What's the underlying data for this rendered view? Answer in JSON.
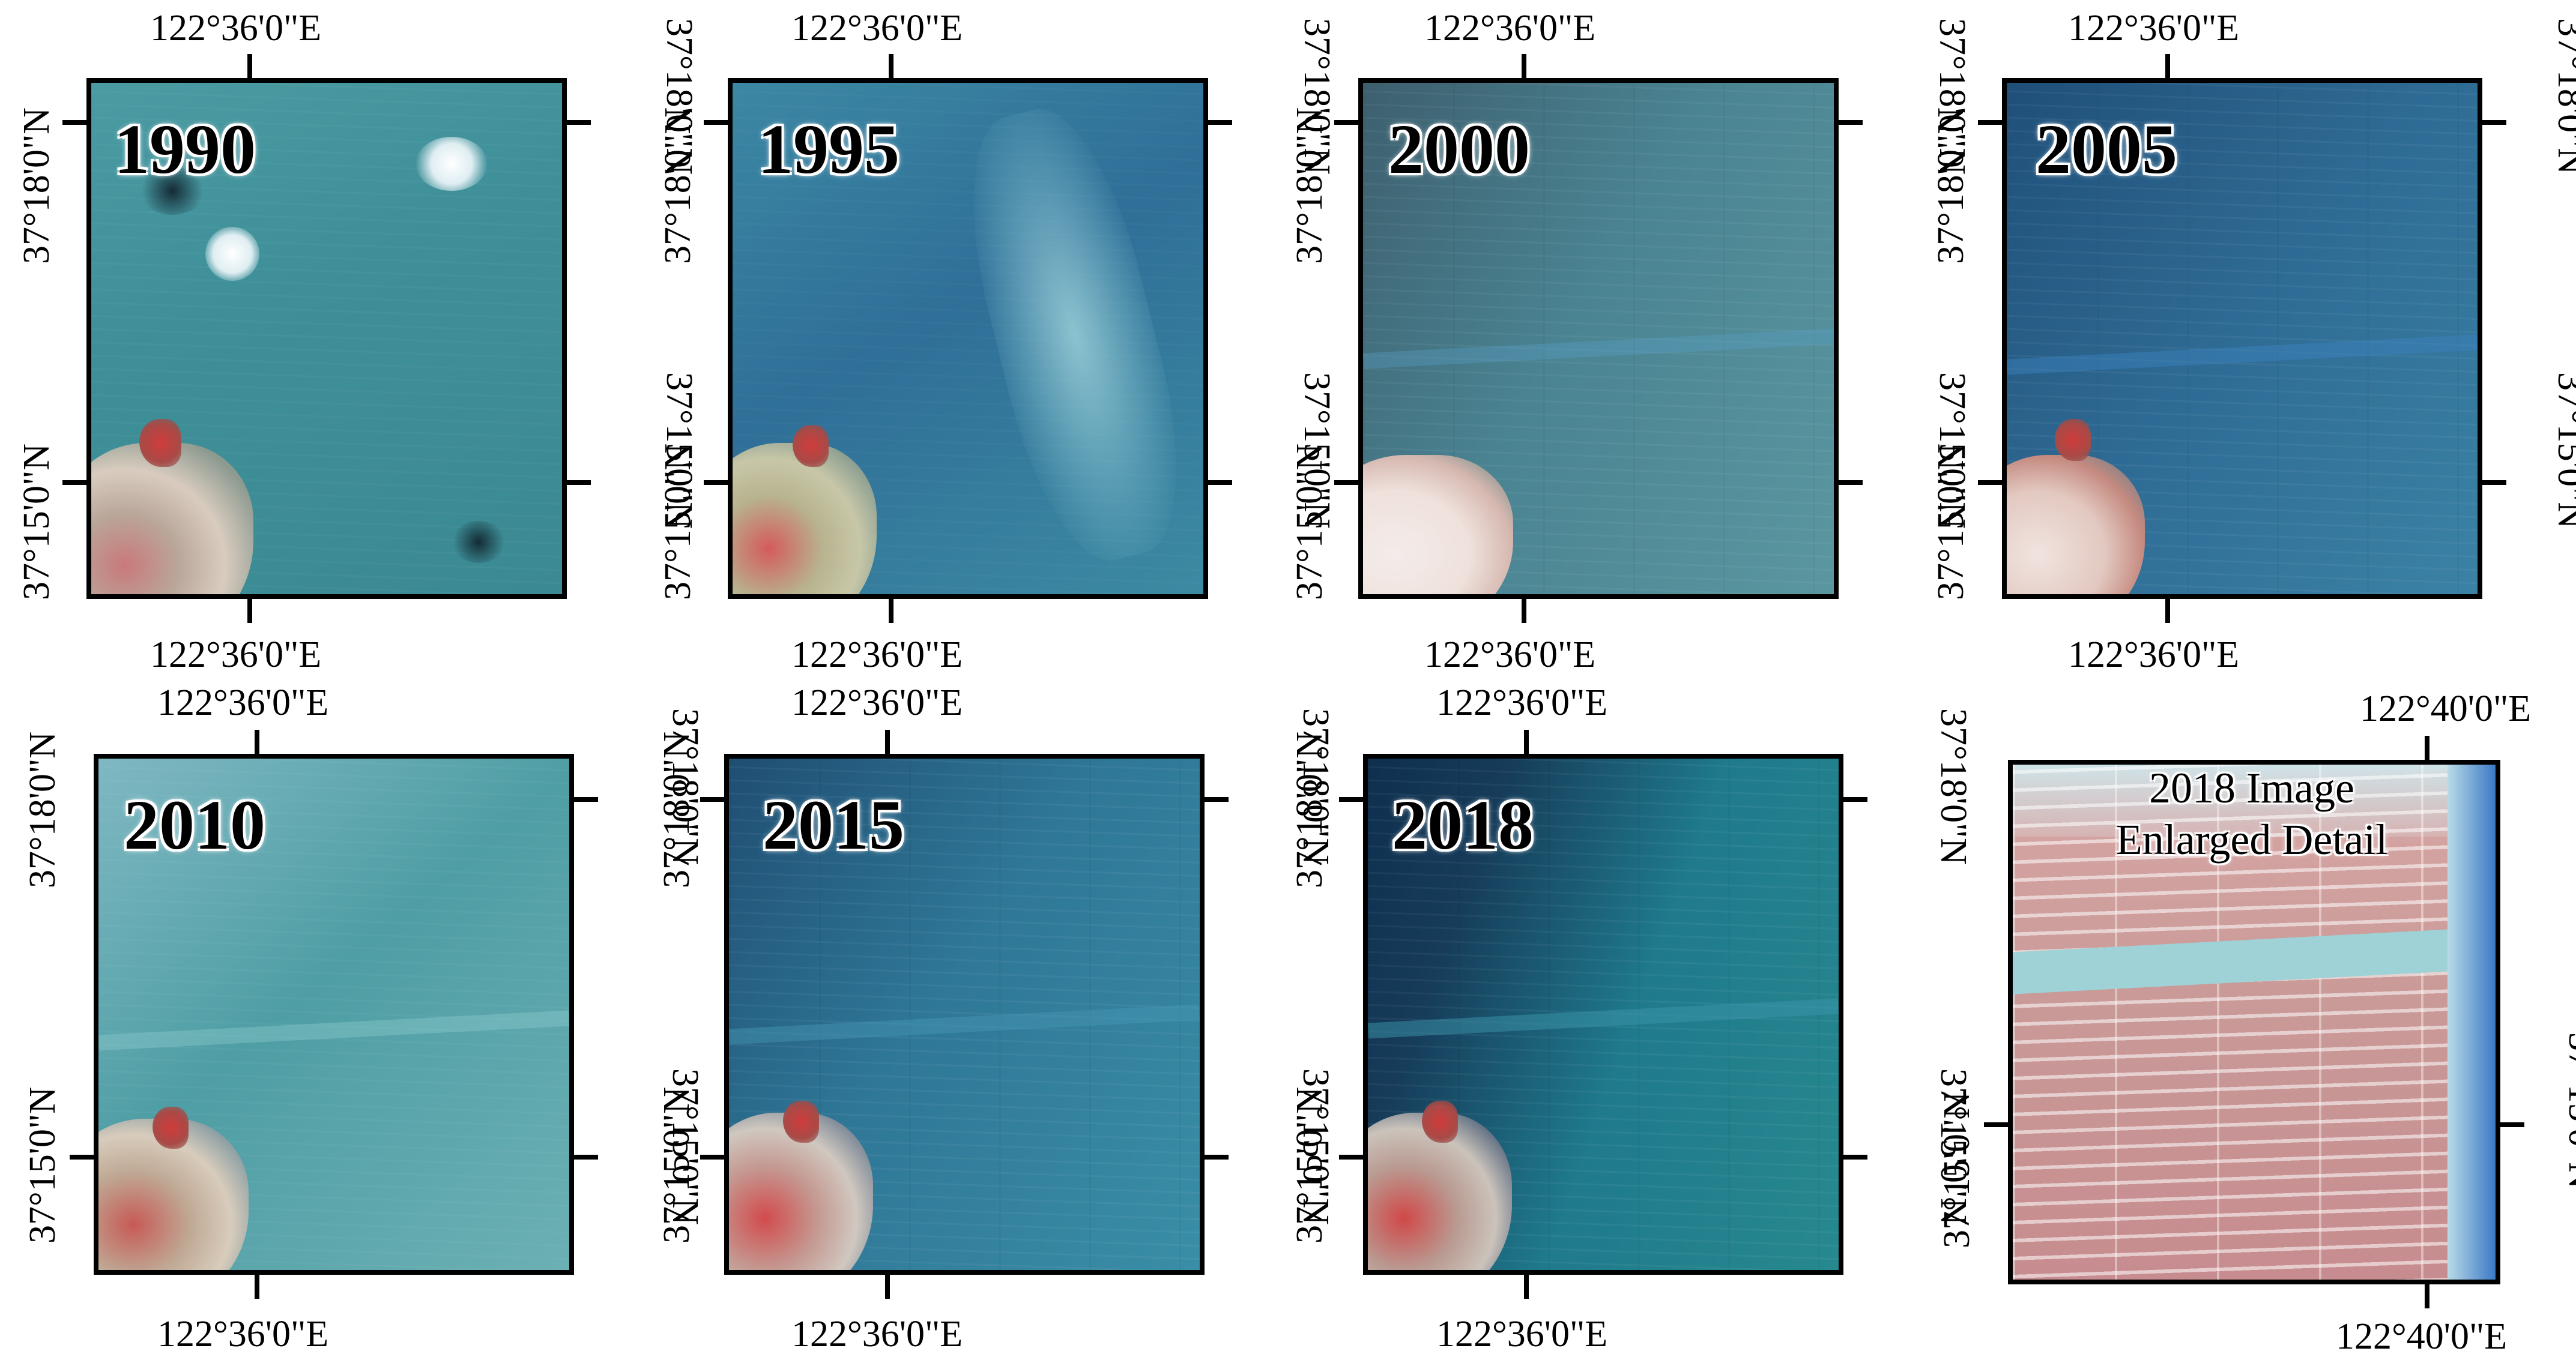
{
  "lon_label": "122°36'0\"E",
  "lat_north_label": "37°18'0\"N",
  "lat_south_label": "37°15'0\"N",
  "panels": [
    {
      "year": "1990",
      "color": "#3f8f99"
    },
    {
      "year": "1995",
      "color": "#2f6f98"
    },
    {
      "year": "2000",
      "color": "#4a8392"
    },
    {
      "year": "2005",
      "color": "#2f6c95"
    },
    {
      "year": "2010",
      "color": "#4f9ea5"
    },
    {
      "year": "2015",
      "color": "#2f7797"
    },
    {
      "year": "2018",
      "color": "#1f7a8c"
    }
  ],
  "detail": {
    "title_line1": "2018 Image",
    "title_line2": "Enlarged Detail",
    "lon_label": "122°40'0\"E",
    "lat_label": "37°15'0\"N",
    "color": "#c99a98"
  }
}
